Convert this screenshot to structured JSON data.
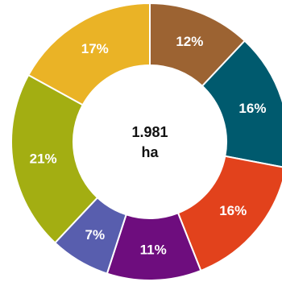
{
  "chart_data": {
    "type": "pie",
    "donut": true,
    "center_label": [
      "1.981",
      "ha"
    ],
    "slices": [
      {
        "value": 12,
        "label": "12%",
        "color": "#9C6332"
      },
      {
        "value": 16,
        "label": "16%",
        "color": "#005A6E"
      },
      {
        "value": 16,
        "label": "16%",
        "color": "#E2421C"
      },
      {
        "value": 11,
        "label": "11%",
        "color": "#6E0D7E"
      },
      {
        "value": 7,
        "label": "7%",
        "color": "#585EAE"
      },
      {
        "value": 21,
        "label": "21%",
        "color": "#A3AE12"
      },
      {
        "value": 17,
        "label": "17%",
        "color": "#EAB326"
      }
    ]
  }
}
